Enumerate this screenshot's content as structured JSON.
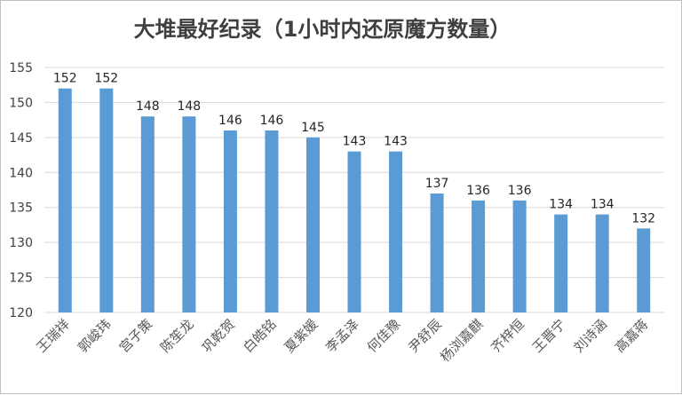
{
  "chart_data": {
    "type": "bar",
    "title": "大堆最好纪录（1小时内还原魔方数量）",
    "xlabel": "",
    "ylabel": "",
    "ylim": [
      120,
      155
    ],
    "yticks": [
      120,
      125,
      130,
      135,
      140,
      145,
      150,
      155
    ],
    "grid": true,
    "legend": "none",
    "bar_color": "#5b9bd5",
    "categories": [
      "王瑞祥",
      "郭峻玮",
      "宫子策",
      "陈笙龙",
      "巩乾贺",
      "白皓铭",
      "夏紫媛",
      "李孟泽",
      "何佳豫",
      "尹舒辰",
      "杨浏嘉麒",
      "齐梓恒",
      "王晋宁",
      "刘诗涵",
      "高嘉蒋"
    ],
    "values": [
      152,
      152,
      148,
      148,
      146,
      146,
      145,
      143,
      143,
      137,
      136,
      136,
      134,
      134,
      132
    ]
  }
}
